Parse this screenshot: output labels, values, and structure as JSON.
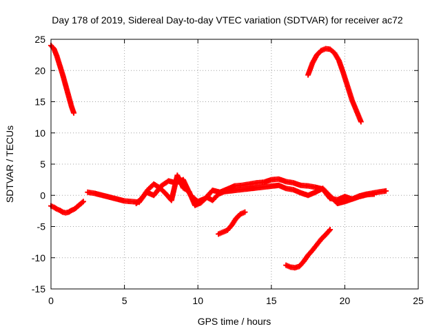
{
  "chart_data": {
    "type": "scatter",
    "title": "Day 178 of 2019, Sidereal Day-to-day VTEC variation (SDTVAR) for receiver ac72",
    "xlabel": "GPS time / hours",
    "ylabel": "SDTVAR / TECUs",
    "xlim": [
      0,
      25
    ],
    "ylim": [
      -15,
      25
    ],
    "xticks": [
      0,
      5,
      10,
      15,
      20,
      25
    ],
    "yticks": [
      -15,
      -10,
      -5,
      0,
      5,
      10,
      15,
      20,
      25
    ],
    "grid": true,
    "marker": "plus",
    "color": "#ff0000",
    "series": [
      {
        "name": "arc-early-high",
        "x": [
          0.0,
          0.2,
          0.4,
          0.6,
          0.8,
          1.0,
          1.2,
          1.4,
          1.55
        ],
        "y": [
          24.0,
          23.5,
          22.3,
          20.8,
          19.3,
          17.6,
          15.9,
          14.2,
          13.2
        ]
      },
      {
        "name": "arc-early-low",
        "x": [
          0.0,
          0.2,
          0.4,
          0.6,
          0.8,
          1.0,
          1.2,
          1.4,
          1.6,
          1.8,
          2.0,
          2.2
        ],
        "y": [
          -1.7,
          -1.9,
          -2.2,
          -2.4,
          -2.7,
          -2.8,
          -2.7,
          -2.4,
          -2.2,
          -1.8,
          -1.4,
          -1.0
        ]
      },
      {
        "name": "band-main",
        "x": [
          2.5,
          3.0,
          3.5,
          4.0,
          4.5,
          5.0,
          5.5,
          6.0,
          6.5,
          7.0,
          7.5,
          8.0,
          8.5,
          9.0,
          9.5,
          10.0,
          10.5,
          11.0,
          11.5,
          12.0,
          12.5,
          13.0,
          13.5,
          14.0,
          14.5,
          15.0,
          15.5,
          16.0,
          16.5,
          17.0,
          17.5,
          18.0,
          18.5,
          19.0,
          19.5,
          20.0,
          20.5,
          21.0,
          21.5,
          22.0,
          22.5,
          22.8
        ],
        "y": [
          0.5,
          0.3,
          0.0,
          -0.3,
          -0.6,
          -0.9,
          -1.0,
          -1.1,
          0.5,
          0.0,
          1.5,
          2.3,
          2.0,
          2.5,
          0.0,
          -1.0,
          -0.5,
          0.8,
          0.5,
          1.0,
          1.5,
          1.6,
          1.8,
          2.0,
          2.1,
          2.5,
          2.6,
          2.2,
          2.0,
          1.6,
          1.5,
          1.3,
          1.0,
          -0.5,
          -0.7,
          -0.2,
          -0.6,
          -0.1,
          0.2,
          0.4,
          0.6,
          0.7
        ]
      },
      {
        "name": "band-secondary",
        "x": [
          5.8,
          6.2,
          6.6,
          7.0,
          7.4,
          7.8,
          8.2,
          8.6,
          9.0,
          9.4,
          9.8,
          10.2,
          10.6,
          11.0,
          11.4,
          11.8,
          15.5,
          16.0,
          16.5,
          17.0,
          17.5,
          18.0,
          18.5,
          19.5,
          20.0,
          20.5,
          21.0,
          21.5,
          22.0
        ],
        "y": [
          -1.3,
          -0.4,
          0.9,
          1.8,
          1.2,
          0.3,
          -0.8,
          3.2,
          1.2,
          0.6,
          -1.6,
          -1.2,
          -0.3,
          -0.8,
          0.2,
          0.6,
          1.6,
          1.1,
          0.9,
          0.4,
          0.0,
          0.5,
          1.1,
          -1.3,
          -1.0,
          -0.6,
          -0.2,
          0.1,
          0.2
        ]
      },
      {
        "name": "arc-midday-low",
        "x": [
          11.4,
          11.7,
          12.0,
          12.3,
          12.6,
          12.9,
          13.2
        ],
        "y": [
          -6.2,
          -5.9,
          -5.6,
          -4.8,
          -3.7,
          -3.0,
          -2.7
        ]
      },
      {
        "name": "arc-afternoon-low",
        "x": [
          16.0,
          16.3,
          16.6,
          16.9,
          17.2,
          17.5,
          17.8,
          18.1,
          18.4,
          18.7,
          19.0
        ],
        "y": [
          -11.2,
          -11.5,
          -11.6,
          -11.4,
          -10.6,
          -9.6,
          -8.8,
          -7.9,
          -7.0,
          -6.3,
          -5.5
        ]
      },
      {
        "name": "arc-evening-high",
        "x": [
          17.5,
          17.8,
          18.1,
          18.4,
          18.7,
          19.0,
          19.3,
          19.6,
          19.9,
          20.2,
          20.5,
          20.8,
          21.1
        ],
        "y": [
          19.3,
          21.2,
          22.5,
          23.2,
          23.5,
          23.4,
          22.8,
          21.6,
          19.6,
          17.4,
          15.2,
          13.5,
          11.8
        ]
      }
    ]
  }
}
